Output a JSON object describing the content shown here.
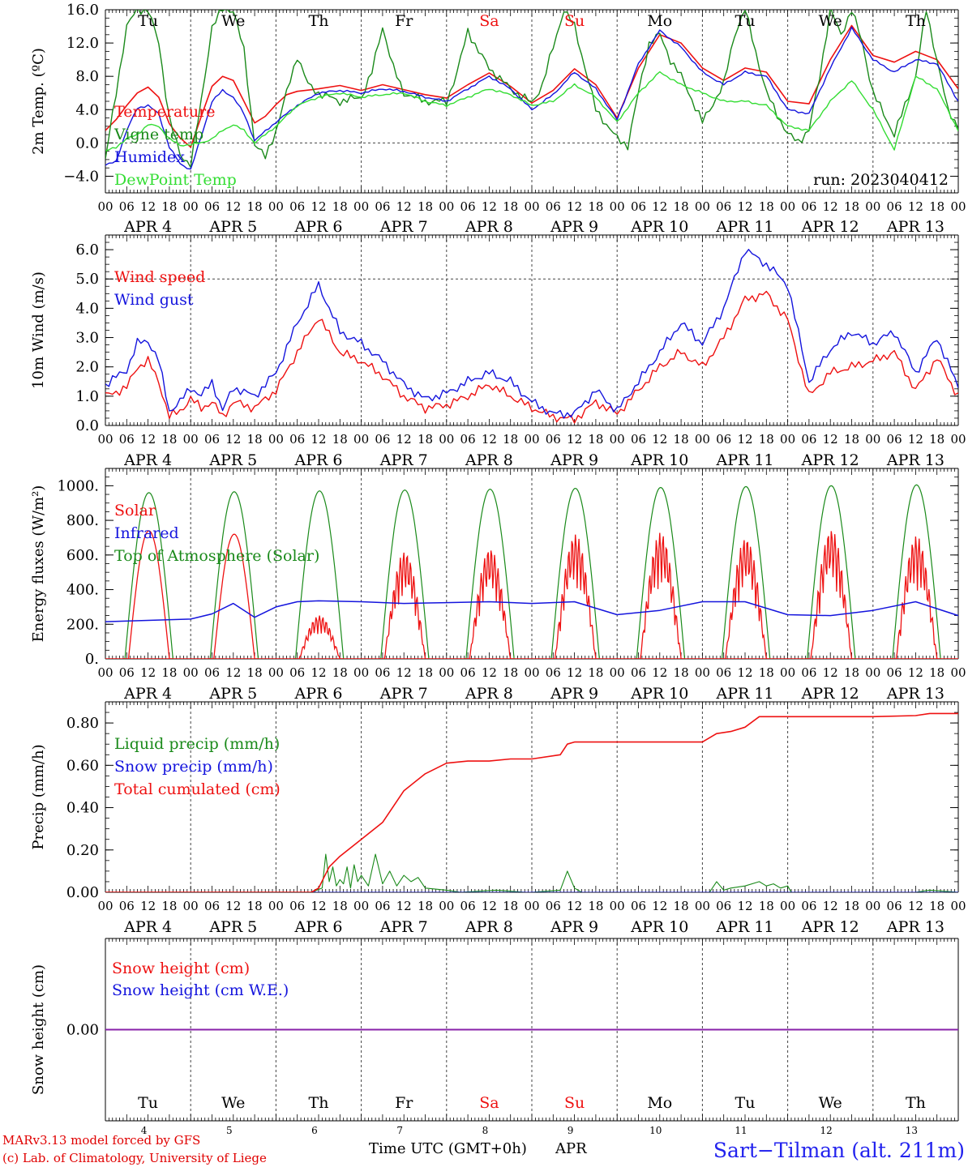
{
  "colors": {
    "red": "#ee1111",
    "green": "#1a8a1a",
    "lightgreen": "#33dd33",
    "blue": "#1414dd",
    "purple": "#8822aa",
    "weekend": "#ee1111",
    "station": "#2222ee"
  },
  "x_axis": {
    "hour_ticks": [
      "00",
      "06",
      "12",
      "18"
    ],
    "last_tick": "00",
    "dates": [
      "APR  4",
      "APR  5",
      "APR  6",
      "APR  7",
      "APR  8",
      "APR  9",
      "APR 10",
      "APR 11",
      "APR 12",
      "APR 13"
    ],
    "day_names": [
      "Tu",
      "We",
      "Th",
      "Fr",
      "Sa",
      "Su",
      "Mo",
      "Tu",
      "We",
      "Th"
    ],
    "weekend_days": [
      4,
      5
    ],
    "day_numbers": [
      "4",
      "5",
      "6",
      "7",
      "8",
      "9",
      "10",
      "11",
      "12",
      "13"
    ],
    "title": "Time UTC (GMT+0h)",
    "month": "APR"
  },
  "credits": {
    "line1": "MARv3.13 model forced by GFS",
    "line2": "(c) Lab. of Climatology, University of Liege"
  },
  "station": "Sart−Tilman (alt. 211m)",
  "run_label": "run: 2023040412",
  "chart_data": [
    {
      "type": "line",
      "id": "temperature",
      "ylabel": "2m Temp. (ºC)",
      "ylim": [
        -6,
        16
      ],
      "ytick_values": [
        -4,
        0,
        4,
        8,
        12,
        16
      ],
      "ytick_labels": [
        "−4.0",
        "0.0",
        "4.0",
        "8.0",
        "12.0",
        "16.0"
      ],
      "dashed_h": [
        0
      ],
      "x_unit": "hours since APR 4 00 UTC",
      "series": [
        {
          "name": "Temperature",
          "color": "red",
          "x": [
            0,
            3,
            6,
            9,
            12,
            15,
            18,
            21,
            24,
            27,
            30,
            33,
            36,
            39,
            42,
            45,
            48,
            51,
            54,
            60,
            66,
            72,
            78,
            84,
            90,
            96,
            102,
            108,
            114,
            120,
            126,
            132,
            138,
            144,
            150,
            156,
            162,
            168,
            174,
            180,
            186,
            192,
            198,
            204,
            210,
            216,
            222,
            228,
            234,
            240
          ],
          "values": [
            1.5,
            2.8,
            4.5,
            6.0,
            6.7,
            5.5,
            2.3,
            0.6,
            -0.5,
            3.2,
            6.8,
            8.0,
            7.5,
            5.0,
            2.4,
            3.2,
            4.6,
            5.8,
            6.2,
            6.5,
            6.9,
            6.3,
            7.0,
            6.4,
            5.8,
            5.4,
            7.0,
            8.4,
            6.8,
            4.8,
            6.3,
            8.9,
            7.0,
            3.0,
            9.0,
            13.0,
            12.0,
            9.0,
            7.5,
            9.0,
            8.5,
            5.0,
            4.7,
            10.0,
            14.1,
            10.5,
            9.7,
            11.0,
            10.0,
            6.5
          ]
        },
        {
          "name": "Vigne temp",
          "color": "green",
          "x": [
            0,
            3,
            6,
            9,
            12,
            15,
            18,
            21,
            24,
            27,
            30,
            33,
            36,
            39,
            42,
            45,
            48,
            51,
            54,
            57,
            60,
            66,
            72,
            75,
            78,
            81,
            84,
            90,
            96,
            99,
            102,
            105,
            108,
            114,
            120,
            123,
            126,
            129,
            132,
            138,
            144,
            147,
            150,
            153,
            156,
            159,
            162,
            168,
            174,
            177,
            180,
            186,
            192,
            195,
            198,
            201,
            204,
            207,
            210,
            213,
            216,
            222,
            228,
            231,
            234,
            237,
            240
          ],
          "values": [
            -2.0,
            6.0,
            14.0,
            16.0,
            16.0,
            12.0,
            3.0,
            -1.5,
            -2.5,
            5.0,
            14.0,
            16.0,
            16.0,
            11.0,
            0.0,
            -1.8,
            1.5,
            6.0,
            10.5,
            7.0,
            6.0,
            5.0,
            5.5,
            8.5,
            14.0,
            9.0,
            6.0,
            5.0,
            5.0,
            8.5,
            13.5,
            11.0,
            9.0,
            6.5,
            4.8,
            7.0,
            11.5,
            16.0,
            14.0,
            4.0,
            0.5,
            -0.3,
            6.0,
            12.0,
            13.0,
            10.0,
            8.0,
            2.5,
            7.0,
            13.0,
            16.0,
            6.0,
            1.0,
            0.2,
            1.5,
            8.0,
            16.0,
            13.0,
            16.0,
            12.0,
            6.0,
            1.0,
            8.0,
            16.0,
            10.0,
            4.0,
            2.0
          ]
        },
        {
          "name": "Humidex",
          "color": "blue",
          "x": [
            0,
            3,
            6,
            9,
            12,
            15,
            18,
            21,
            24,
            27,
            30,
            33,
            36,
            39,
            42,
            48,
            54,
            60,
            66,
            72,
            78,
            84,
            90,
            96,
            102,
            108,
            114,
            120,
            126,
            132,
            138,
            144,
            150,
            156,
            162,
            168,
            174,
            180,
            186,
            192,
            198,
            204,
            210,
            216,
            222,
            228,
            234,
            240
          ],
          "values": [
            -2.7,
            -2.2,
            1.5,
            4.2,
            4.5,
            3.5,
            -0.5,
            -2.5,
            -3.2,
            0.8,
            5.0,
            6.3,
            5.5,
            3.5,
            0.3,
            2.5,
            4.5,
            6.0,
            6.3,
            6.0,
            6.5,
            6.2,
            5.5,
            5.0,
            6.5,
            8.0,
            6.5,
            4.0,
            5.8,
            8.5,
            6.5,
            2.8,
            9.5,
            13.5,
            11.5,
            8.5,
            7.0,
            8.5,
            8.0,
            4.0,
            3.5,
            9.0,
            13.8,
            10.0,
            8.5,
            10.0,
            9.5,
            5.0
          ]
        },
        {
          "name": "DewPoint Temp",
          "color": "lightgreen",
          "x": [
            0,
            3,
            6,
            9,
            12,
            15,
            18,
            21,
            24,
            27,
            30,
            33,
            36,
            39,
            42,
            48,
            54,
            60,
            66,
            72,
            78,
            84,
            90,
            96,
            102,
            108,
            114,
            120,
            126,
            132,
            138,
            144,
            150,
            156,
            162,
            168,
            174,
            180,
            186,
            192,
            198,
            204,
            210,
            216,
            222,
            228,
            234,
            240
          ],
          "values": [
            -1.0,
            -0.5,
            0.5,
            1.0,
            2.2,
            2.0,
            0.5,
            -0.3,
            -0.2,
            0.0,
            0.5,
            1.5,
            2.2,
            1.5,
            0.0,
            2.0,
            4.5,
            5.5,
            6.0,
            5.5,
            5.8,
            6.0,
            5.0,
            4.5,
            5.5,
            6.5,
            5.8,
            4.5,
            5.0,
            7.0,
            5.5,
            2.5,
            6.0,
            8.5,
            7.0,
            6.0,
            5.0,
            5.0,
            4.5,
            2.0,
            1.5,
            5.0,
            7.5,
            4.0,
            -0.8,
            8.0,
            6.5,
            1.5
          ]
        }
      ]
    },
    {
      "type": "line",
      "id": "wind",
      "ylabel": "10m Wind (m/s)",
      "ylim": [
        0,
        6.5
      ],
      "ytick_values": [
        0,
        1,
        2,
        3,
        4,
        5,
        6
      ],
      "ytick_labels": [
        "0.0",
        "1.0",
        "2.0",
        "3.0",
        "4.0",
        "5.0",
        "6.0"
      ],
      "dashed_h": [
        5
      ],
      "x_unit": "hours since APR 4 00 UTC",
      "series": [
        {
          "name": "Wind speed",
          "color": "red",
          "x": [
            0,
            6,
            9,
            12,
            15,
            18,
            21,
            24,
            27,
            30,
            33,
            36,
            42,
            48,
            54,
            60,
            66,
            72,
            78,
            84,
            90,
            96,
            102,
            108,
            114,
            120,
            126,
            132,
            138,
            144,
            150,
            156,
            162,
            168,
            174,
            180,
            186,
            192,
            198,
            204,
            210,
            216,
            222,
            228,
            234,
            240
          ],
          "values": [
            1.0,
            1.3,
            2.0,
            2.2,
            1.5,
            0.3,
            0.5,
            0.9,
            0.6,
            0.8,
            0.3,
            0.8,
            0.6,
            1.2,
            2.5,
            3.7,
            2.5,
            2.2,
            1.7,
            1.0,
            0.6,
            0.7,
            1.0,
            1.4,
            1.0,
            0.6,
            0.3,
            0.2,
            0.8,
            0.4,
            1.2,
            2.0,
            2.5,
            2.0,
            3.0,
            4.3,
            4.5,
            3.6,
            1.0,
            1.8,
            2.0,
            2.2,
            2.5,
            1.2,
            2.3,
            1.0
          ]
        },
        {
          "name": "Wind gust",
          "color": "blue",
          "x": [
            0,
            6,
            9,
            12,
            15,
            18,
            21,
            24,
            27,
            30,
            33,
            36,
            42,
            48,
            54,
            60,
            66,
            72,
            78,
            84,
            90,
            96,
            102,
            108,
            114,
            120,
            126,
            132,
            138,
            144,
            150,
            156,
            162,
            168,
            174,
            180,
            186,
            192,
            198,
            204,
            210,
            216,
            222,
            228,
            234,
            240
          ],
          "values": [
            1.4,
            1.9,
            2.8,
            2.9,
            2.2,
            0.5,
            0.8,
            1.3,
            1.0,
            1.5,
            0.5,
            1.3,
            1.0,
            1.8,
            3.5,
            4.8,
            3.2,
            2.8,
            2.2,
            1.4,
            0.9,
            1.1,
            1.5,
            1.8,
            1.5,
            0.8,
            0.4,
            0.4,
            1.2,
            0.5,
            1.5,
            2.5,
            3.5,
            2.8,
            4.0,
            6.0,
            5.5,
            4.8,
            1.5,
            2.6,
            3.2,
            2.8,
            3.2,
            1.8,
            3.0,
            1.3
          ]
        }
      ]
    },
    {
      "type": "line",
      "id": "energy",
      "ylabel": "Energy fluxes (W/m²)",
      "ylim": [
        0,
        1100
      ],
      "ytick_values": [
        0,
        200,
        400,
        600,
        800,
        1000
      ],
      "ytick_labels": [
        "0.",
        "200.",
        "400.",
        "600.",
        "800.",
        "1000."
      ],
      "dashed_h": [],
      "x_unit": "hours since APR 4 00 UTC",
      "toa_peaks": [
        960,
        965,
        970,
        975,
        980,
        985,
        990,
        995,
        1000,
        1005
      ],
      "series": [
        {
          "name": "Solar",
          "color": "red",
          "day_peaks": [
            740,
            720,
            250,
            620,
            640,
            720,
            730,
            700,
            750,
            710
          ]
        },
        {
          "name": "Infrared",
          "color": "blue",
          "x": [
            0,
            24,
            30,
            36,
            42,
            48,
            54,
            60,
            72,
            84,
            96,
            108,
            120,
            132,
            144,
            156,
            168,
            180,
            192,
            204,
            216,
            228,
            240
          ],
          "values": [
            215,
            230,
            260,
            320,
            240,
            300,
            330,
            335,
            330,
            320,
            325,
            330,
            320,
            330,
            255,
            280,
            330,
            330,
            255,
            250,
            280,
            330,
            250
          ]
        },
        {
          "name": "Top of Atmosphere (Solar)",
          "color": "green"
        }
      ]
    },
    {
      "type": "line",
      "id": "precip",
      "ylabel": "Precip (mm/h)",
      "ylim": [
        0,
        0.9
      ],
      "ytick_values": [
        0,
        0.2,
        0.4,
        0.6,
        0.8
      ],
      "ytick_labels": [
        "0.00",
        "0.20",
        "0.40",
        "0.60",
        "0.80"
      ],
      "dashed_h": [],
      "x_unit": "hours since APR 4 00 UTC",
      "series": [
        {
          "name": "Liquid precip (mm/h)",
          "color": "green",
          "x": [
            0,
            58,
            61,
            62,
            63,
            64,
            65,
            66,
            67,
            68,
            69,
            70,
            71,
            72,
            74,
            76,
            78,
            80,
            82,
            84,
            86,
            88,
            90,
            96,
            100,
            110,
            118,
            120,
            128,
            130,
            132,
            134,
            136,
            170,
            172,
            174,
            176,
            180,
            184,
            186,
            188,
            190,
            192,
            193,
            228,
            232,
            240
          ],
          "values": [
            0,
            0,
            0.02,
            0.18,
            0.05,
            0.12,
            0.03,
            0.06,
            0.04,
            0.12,
            0.02,
            0.13,
            0.05,
            0.08,
            0.03,
            0.18,
            0.04,
            0.1,
            0.03,
            0.08,
            0.05,
            0.07,
            0.02,
            0.01,
            0.0,
            0.01,
            0.0,
            0.0,
            0.01,
            0.1,
            0.02,
            0.0,
            0.0,
            0.0,
            0.05,
            0.01,
            0.02,
            0.03,
            0.05,
            0.03,
            0.04,
            0.02,
            0.03,
            0.0,
            0.0,
            0.01,
            0.0
          ]
        },
        {
          "name": "Snow precip (mm/h)",
          "color": "blue",
          "x": [
            0,
            240
          ],
          "values": [
            0,
            0
          ]
        },
        {
          "name": "Total cumulated (cm)",
          "color": "red",
          "x": [
            0,
            58,
            60,
            63,
            66,
            72,
            78,
            84,
            90,
            96,
            102,
            108,
            114,
            120,
            128,
            130,
            132,
            140,
            150,
            168,
            172,
            176,
            180,
            184,
            216,
            228,
            232,
            240
          ],
          "values": [
            0,
            0,
            0.02,
            0.12,
            0.17,
            0.25,
            0.33,
            0.48,
            0.56,
            0.61,
            0.62,
            0.62,
            0.63,
            0.63,
            0.65,
            0.7,
            0.71,
            0.71,
            0.71,
            0.71,
            0.75,
            0.76,
            0.78,
            0.83,
            0.83,
            0.835,
            0.845,
            0.845
          ]
        }
      ]
    },
    {
      "type": "line",
      "id": "snow",
      "ylabel": "Snow height (cm)",
      "ylim": [
        -1,
        1
      ],
      "ytick_values": [
        0
      ],
      "ytick_labels": [
        "0.00"
      ],
      "dashed_h": [],
      "x_unit": "hours since APR 4 00 UTC",
      "series": [
        {
          "name": "Snow height (cm)",
          "color": "red",
          "x": [
            0,
            240
          ],
          "values": [
            0,
            0
          ]
        },
        {
          "name": "Snow height (cm W.E.)",
          "color": "blue",
          "x": [
            0,
            240
          ],
          "values": [
            0,
            0
          ]
        }
      ]
    }
  ]
}
